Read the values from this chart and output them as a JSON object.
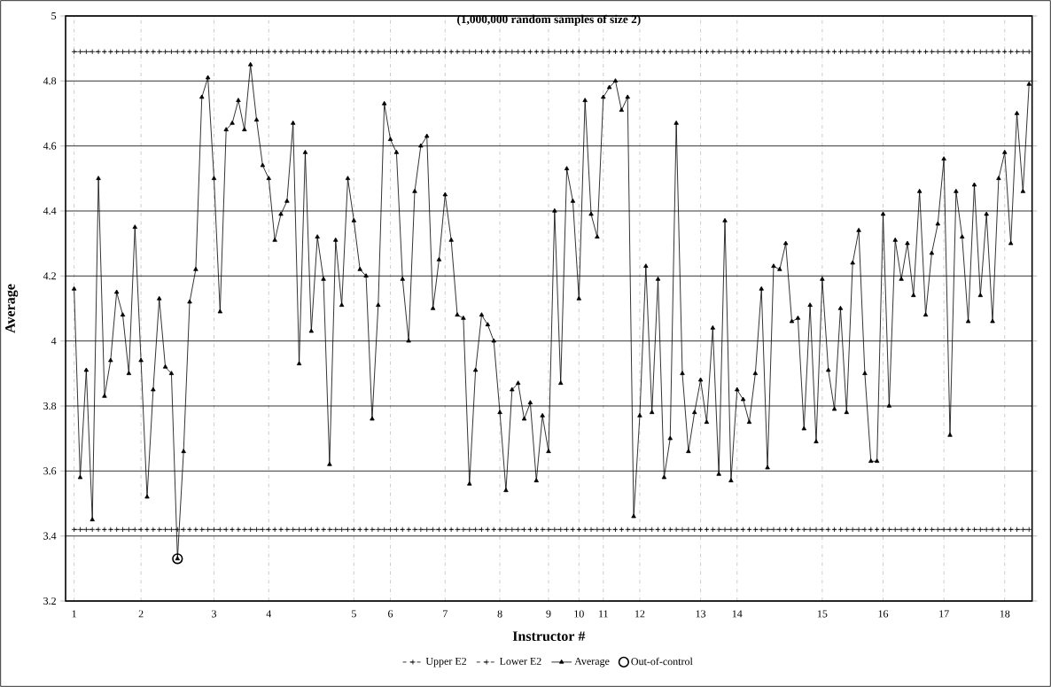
{
  "chart_data": {
    "type": "line",
    "title": "(1,000,000 random samples of size 2)",
    "xlabel": "Instructor #",
    "ylabel": "Average",
    "categories": [
      "1",
      null,
      null,
      null,
      null,
      null,
      null,
      null,
      null,
      null,
      null,
      "2",
      null,
      null,
      null,
      null,
      null,
      null,
      null,
      null,
      null,
      null,
      null,
      "3",
      null,
      null,
      null,
      null,
      null,
      null,
      null,
      null,
      "4",
      null,
      null,
      null,
      null,
      null,
      null,
      null,
      null,
      null,
      null,
      null,
      null,
      null,
      "5",
      null,
      null,
      null,
      null,
      null,
      "6",
      null,
      null,
      null,
      null,
      null,
      null,
      null,
      null,
      "7",
      null,
      null,
      null,
      null,
      null,
      null,
      null,
      null,
      "8",
      null,
      null,
      null,
      null,
      null,
      null,
      null,
      "9",
      null,
      null,
      null,
      null,
      "10",
      null,
      null,
      null,
      "11",
      null,
      null,
      null,
      null,
      null,
      "12",
      null,
      null,
      null,
      null,
      null,
      null,
      null,
      null,
      null,
      "13",
      null,
      null,
      null,
      null,
      null,
      "14",
      null,
      null,
      null,
      null,
      null,
      null,
      null,
      null,
      null,
      null,
      null,
      null,
      null,
      "15",
      null,
      null,
      null,
      null,
      null,
      null,
      null,
      null,
      null,
      "16",
      null,
      null,
      null,
      null,
      null,
      null,
      null,
      null,
      null,
      "17",
      null,
      null,
      null,
      null,
      null,
      null,
      null,
      null,
      null,
      "18",
      null,
      null,
      null,
      null
    ],
    "ylim": [
      3.2,
      5
    ],
    "yticks": [
      3.2,
      3.4,
      3.6,
      3.8,
      4,
      4.2,
      4.4,
      4.6,
      4.8,
      5
    ],
    "grid": true,
    "legend": "bottom",
    "series": [
      {
        "name": "Upper E2",
        "color": "#000000",
        "marker": "cross",
        "line_style": "dashed",
        "values": [
          4.89,
          4.89,
          4.89,
          4.89,
          4.89,
          4.89,
          4.89,
          4.89,
          4.89,
          4.89,
          4.89,
          4.89,
          4.89,
          4.89,
          4.89,
          4.89,
          4.89,
          4.89,
          4.89,
          4.89,
          4.89,
          4.89,
          4.89,
          4.89,
          4.89,
          4.89,
          4.89,
          4.89,
          4.89,
          4.89,
          4.89,
          4.89,
          4.89,
          4.89,
          4.89,
          4.89,
          4.89,
          4.89,
          4.89,
          4.89,
          4.89,
          4.89,
          4.89,
          4.89,
          4.89,
          4.89,
          4.89,
          4.89,
          4.89,
          4.89,
          4.89,
          4.89,
          4.89,
          4.89,
          4.89,
          4.89,
          4.89,
          4.89,
          4.89,
          4.89,
          4.89,
          4.89,
          4.89,
          4.89,
          4.89,
          4.89,
          4.89,
          4.89,
          4.89,
          4.89,
          4.89,
          4.89,
          4.89,
          4.89,
          4.89,
          4.89,
          4.89,
          4.89,
          4.89,
          4.89,
          4.89,
          4.89,
          4.89,
          4.89,
          4.89,
          4.89,
          4.89,
          4.89,
          4.89,
          4.89,
          4.89,
          4.89,
          4.89,
          4.89,
          4.89,
          4.89,
          4.89,
          4.89,
          4.89,
          4.89,
          4.89,
          4.89,
          4.89,
          4.89,
          4.89,
          4.89,
          4.89,
          4.89,
          4.89,
          4.89,
          4.89,
          4.89,
          4.89,
          4.89,
          4.89,
          4.89,
          4.89,
          4.89,
          4.89,
          4.89,
          4.89,
          4.89,
          4.89,
          4.89,
          4.89,
          4.89,
          4.89,
          4.89,
          4.89,
          4.89,
          4.89,
          4.89,
          4.89,
          4.89,
          4.89,
          4.89,
          4.89,
          4.89,
          4.89,
          4.89,
          4.89,
          4.89,
          4.89,
          4.89,
          4.89,
          4.89,
          4.89,
          4.89,
          4.89,
          4.89,
          4.89,
          4.89,
          4.89,
          4.89,
          4.89,
          4.89,
          4.89,
          4.89
        ]
      },
      {
        "name": "Lower E2",
        "color": "#000000",
        "marker": "cross",
        "line_style": "dashed",
        "values": [
          3.42,
          3.42,
          3.42,
          3.42,
          3.42,
          3.42,
          3.42,
          3.42,
          3.42,
          3.42,
          3.42,
          3.42,
          3.42,
          3.42,
          3.42,
          3.42,
          3.42,
          3.42,
          3.42,
          3.42,
          3.42,
          3.42,
          3.42,
          3.42,
          3.42,
          3.42,
          3.42,
          3.42,
          3.42,
          3.42,
          3.42,
          3.42,
          3.42,
          3.42,
          3.42,
          3.42,
          3.42,
          3.42,
          3.42,
          3.42,
          3.42,
          3.42,
          3.42,
          3.42,
          3.42,
          3.42,
          3.42,
          3.42,
          3.42,
          3.42,
          3.42,
          3.42,
          3.42,
          3.42,
          3.42,
          3.42,
          3.42,
          3.42,
          3.42,
          3.42,
          3.42,
          3.42,
          3.42,
          3.42,
          3.42,
          3.42,
          3.42,
          3.42,
          3.42,
          3.42,
          3.42,
          3.42,
          3.42,
          3.42,
          3.42,
          3.42,
          3.42,
          3.42,
          3.42,
          3.42,
          3.42,
          3.42,
          3.42,
          3.42,
          3.42,
          3.42,
          3.42,
          3.42,
          3.42,
          3.42,
          3.42,
          3.42,
          3.42,
          3.42,
          3.42,
          3.42,
          3.42,
          3.42,
          3.42,
          3.42,
          3.42,
          3.42,
          3.42,
          3.42,
          3.42,
          3.42,
          3.42,
          3.42,
          3.42,
          3.42,
          3.42,
          3.42,
          3.42,
          3.42,
          3.42,
          3.42,
          3.42,
          3.42,
          3.42,
          3.42,
          3.42,
          3.42,
          3.42,
          3.42,
          3.42,
          3.42,
          3.42,
          3.42,
          3.42,
          3.42,
          3.42,
          3.42,
          3.42,
          3.42,
          3.42,
          3.42,
          3.42,
          3.42,
          3.42,
          3.42,
          3.42,
          3.42,
          3.42,
          3.42,
          3.42,
          3.42,
          3.42,
          3.42,
          3.42,
          3.42,
          3.42,
          3.42,
          3.42,
          3.42,
          3.42,
          3.42,
          3.42,
          3.42
        ]
      },
      {
        "name": "Average",
        "color": "#000000",
        "marker": "triangle",
        "line_style": "solid",
        "values": [
          4.16,
          3.58,
          3.91,
          3.45,
          4.5,
          3.83,
          3.94,
          4.15,
          4.08,
          3.9,
          4.35,
          3.94,
          3.52,
          3.85,
          4.13,
          3.92,
          3.9,
          3.33,
          3.66,
          4.12,
          4.22,
          4.75,
          4.81,
          4.5,
          4.09,
          4.65,
          4.67,
          4.74,
          4.65,
          4.85,
          4.68,
          4.54,
          4.5,
          4.31,
          4.39,
          4.43,
          4.67,
          3.93,
          4.58,
          4.03,
          4.32,
          4.19,
          3.62,
          4.31,
          4.11,
          4.5,
          4.37,
          4.22,
          4.2,
          3.76,
          4.11,
          4.73,
          4.62,
          4.58,
          4.19,
          4.0,
          4.46,
          4.6,
          4.63,
          4.1,
          4.25,
          4.45,
          4.31,
          4.08,
          4.07,
          3.56,
          3.91,
          4.08,
          4.05,
          4.0,
          3.78,
          3.54,
          3.85,
          3.87,
          3.76,
          3.81,
          3.57,
          3.77,
          3.66,
          4.4,
          3.87,
          4.53,
          4.43,
          4.13,
          4.74,
          4.39,
          4.32,
          4.75,
          4.78,
          4.8,
          4.71,
          4.75,
          3.46,
          3.77,
          4.23,
          3.78,
          4.19,
          3.58,
          3.7,
          4.67,
          3.9,
          3.66,
          3.78,
          3.88,
          3.75,
          4.04,
          3.59,
          4.37,
          3.57,
          3.85,
          3.82,
          3.75,
          3.9,
          4.16,
          3.61,
          4.23,
          4.22,
          4.3,
          4.06,
          4.07,
          3.73,
          4.11,
          3.69,
          4.19,
          3.91,
          3.79,
          4.1,
          3.78,
          4.24,
          4.34,
          3.9,
          3.63,
          3.63,
          4.39,
          3.8,
          4.31,
          4.19,
          4.3,
          4.14,
          4.46,
          4.08,
          4.27,
          4.36,
          4.56,
          3.71,
          4.46,
          4.32,
          4.06,
          4.48,
          4.14,
          4.39,
          4.06,
          4.5,
          4.58,
          4.3,
          4.7,
          4.46,
          4.79
        ]
      },
      {
        "name": "Out-of-control",
        "type": "scatter",
        "color": "#000000",
        "marker": "circle",
        "values": [
          null,
          null,
          null,
          null,
          null,
          null,
          null,
          null,
          null,
          null,
          null,
          null,
          null,
          null,
          null,
          null,
          null,
          3.33,
          null,
          null,
          null,
          null,
          null,
          null,
          null,
          null,
          null,
          null,
          null,
          null,
          null,
          null,
          null,
          null,
          null,
          null,
          null,
          null,
          null,
          null,
          null,
          null,
          null,
          null,
          null,
          null,
          null,
          null,
          null,
          null,
          null,
          null,
          null,
          null,
          null,
          null,
          null,
          null,
          null,
          null,
          null,
          null,
          null,
          null,
          null,
          null,
          null,
          null,
          null,
          null,
          null,
          null,
          null,
          null,
          null,
          null,
          null,
          null,
          null,
          null,
          null,
          null,
          null,
          null,
          null,
          null,
          null,
          null,
          null,
          null,
          null,
          null,
          null,
          null,
          null,
          null,
          null,
          null,
          null,
          null,
          null,
          null,
          null,
          null,
          null,
          null,
          null,
          null,
          null,
          null,
          null,
          null,
          null,
          null,
          null,
          null,
          null,
          null,
          null,
          null,
          null,
          null,
          null,
          null,
          null,
          null,
          null,
          null,
          null,
          null,
          null,
          null,
          null,
          null,
          null,
          null,
          null,
          null,
          null,
          null,
          null,
          null,
          null,
          null,
          null,
          null,
          null,
          null,
          null,
          null,
          null,
          null,
          null,
          null,
          null,
          null,
          null,
          null
        ]
      }
    ]
  }
}
